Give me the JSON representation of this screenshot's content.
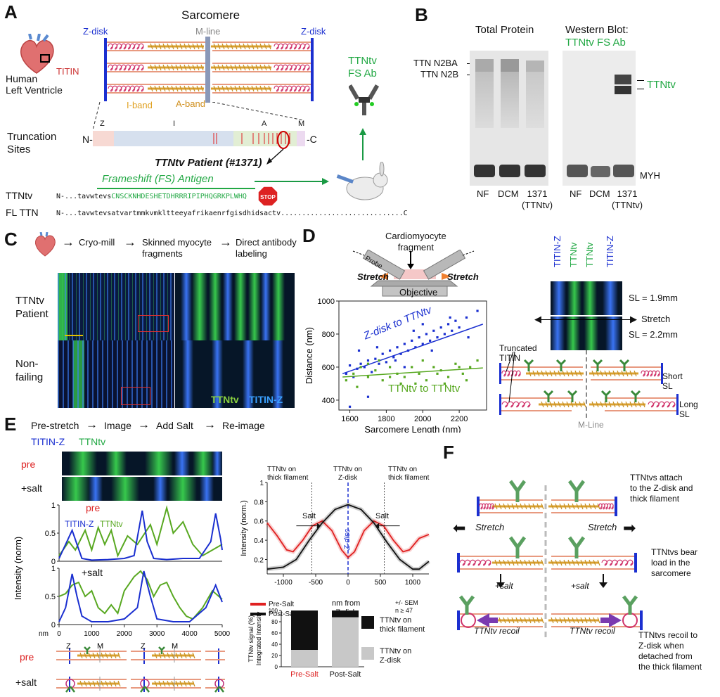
{
  "panels": {
    "A": "A",
    "B": "B",
    "C": "C",
    "D": "D",
    "E": "E",
    "F": "F"
  },
  "panel_a": {
    "title": "Sarcomere",
    "zdisk_left": "Z-disk",
    "zdisk_right": "Z-disk",
    "mline": "M-line",
    "titin": "TITIN",
    "iband": "I-band",
    "aband": "A-band",
    "organ_label": "Human\nLeft Ventricle",
    "truncation_label": "Truncation\nSites",
    "region_z": "Z",
    "region_i": "I",
    "region_a": "A",
    "region_m": "M",
    "n_term": "N-",
    "c_term": "-C",
    "patient": "TTNtv Patient (#1371)",
    "antigen": "Frameshift (FS) Antigen",
    "antibody": "TTNtv\nFS Ab",
    "stop": "STOP",
    "ttntv_label": "TTNtv",
    "fl_label": "FL TTN",
    "ttntv_seq_prefix": "N-...tavwtevs",
    "ttntv_seq_fs": "CNSCKNHDESHETDHRRRIPIPHQGRKPLWHQ",
    "fl_seq": "N-...tavwtevsatvartmmkvmkltteeyafrikaenrfgisdhidsactv.............................C"
  },
  "panel_b": {
    "total_protein": "Total Protein",
    "western_title": "Western Blot:",
    "western_ab": "TTNtv FS Ab",
    "n2ba": "TTN N2BA",
    "n2b": "TTN N2B",
    "ttntv": "TTNtv",
    "myh": "MYH",
    "lanes_left": [
      "NF",
      "DCM",
      "1371\n(TTNtv)"
    ],
    "lanes_right": [
      "NF",
      "DCM",
      "1371\n(TTNtv)"
    ]
  },
  "panel_c": {
    "steps": [
      "Cryo-mill",
      "Skinned myocyte\nfragments",
      "Direct antibody\nlabeling"
    ],
    "row1": "TTNtv\nPatient",
    "row2": "Non-\nfailing",
    "legend_ttntv": "TTNtv",
    "legend_titinz": "TITIN-Z"
  },
  "panel_d": {
    "fragment": "Cardiomyocyte\nfragment",
    "probe": "Probe",
    "stretch_left": "Stretch",
    "stretch_right": "Stretch",
    "objective": "Objective",
    "col_labels": [
      "TITIN-Z",
      "TTNtv",
      "TTNtv",
      "TITIN-Z"
    ],
    "sl1": "SL = 1.9mm",
    "stretch_mid": "Stretch",
    "sl2": "SL = 2.2mm",
    "truncated": "Truncated\nTITIN",
    "short_sl": "Short\nSL",
    "long_sl": "Long\nSL",
    "mline": "M-Line",
    "colors": {
      "blue": "#1a2fd0",
      "green": "#58a821"
    }
  },
  "chart_data": [
    {
      "type": "scatter",
      "xlabel": "Sarcomere Length (nm)",
      "ylabel": "Distance (nm)",
      "xlim": [
        1540,
        2350
      ],
      "ylim": [
        340,
        1000
      ],
      "xticks": [
        "1600",
        "1800",
        "2000",
        "2200"
      ],
      "yticks": [
        "400",
        "600",
        "800",
        "1000"
      ],
      "series": [
        {
          "name": "Z-disk to TTNtv",
          "color": "#1a2fd0",
          "points": [
            [
              1580,
              560
            ],
            [
              1600,
              610
            ],
            [
              1620,
              540
            ],
            [
              1640,
              590
            ],
            [
              1660,
              620
            ],
            [
              1680,
              600
            ],
            [
              1700,
              640
            ],
            [
              1720,
              570
            ],
            [
              1740,
              650
            ],
            [
              1760,
              620
            ],
            [
              1780,
              680
            ],
            [
              1800,
              630
            ],
            [
              1820,
              700
            ],
            [
              1840,
              660
            ],
            [
              1860,
              720
            ],
            [
              1880,
              680
            ],
            [
              1900,
              740
            ],
            [
              1920,
              700
            ],
            [
              1940,
              760
            ],
            [
              1960,
              720
            ],
            [
              1980,
              780
            ],
            [
              2000,
              740
            ],
            [
              2020,
              800
            ],
            [
              2040,
              760
            ],
            [
              2060,
              820
            ],
            [
              2080,
              780
            ],
            [
              2100,
              840
            ],
            [
              2120,
              800
            ],
            [
              2140,
              860
            ],
            [
              2160,
              820
            ],
            [
              2180,
              880
            ],
            [
              2200,
              840
            ],
            [
              2240,
              900
            ],
            [
              2300,
              940
            ],
            [
              1650,
              700
            ],
            [
              1750,
              720
            ],
            [
              1850,
              640
            ],
            [
              1950,
              820
            ],
            [
              2050,
              700
            ],
            [
              2150,
              900
            ],
            [
              1600,
              360
            ],
            [
              1700,
              420
            ],
            [
              2000,
              860
            ],
            [
              1900,
              600
            ],
            [
              2250,
              780
            ]
          ],
          "fit": [
            [
              1560,
              560
            ],
            [
              2330,
              860
            ]
          ]
        },
        {
          "name": "TTNtv to TTNtv",
          "color": "#58a821",
          "points": [
            [
              1580,
              520
            ],
            [
              1620,
              560
            ],
            [
              1660,
              600
            ],
            [
              1700,
              540
            ],
            [
              1740,
              580
            ],
            [
              1780,
              520
            ],
            [
              1820,
              600
            ],
            [
              1860,
              560
            ],
            [
              1900,
              540
            ],
            [
              1940,
              600
            ],
            [
              1980,
              560
            ],
            [
              2020,
              520
            ],
            [
              2060,
              600
            ],
            [
              2100,
              580
            ],
            [
              2140,
              540
            ],
            [
              2180,
              620
            ],
            [
              2220,
              560
            ],
            [
              2260,
              600
            ],
            [
              2300,
              640
            ],
            [
              1640,
              480
            ],
            [
              1760,
              640
            ],
            [
              1880,
              500
            ],
            [
              2000,
              640
            ],
            [
              2120,
              500
            ],
            [
              2240,
              520
            ],
            [
              1700,
              620
            ],
            [
              1820,
              540
            ],
            [
              1960,
              500
            ],
            [
              2080,
              560
            ],
            [
              2200,
              600
            ]
          ],
          "fit": [
            [
              1560,
              540
            ],
            [
              2330,
              595
            ]
          ]
        }
      ]
    },
    {
      "type": "line",
      "xlabel": "nm",
      "ylabel": "Intensity (norm)",
      "title_pre": "pre",
      "title_salt": "+salt",
      "xlim": [
        0,
        5000
      ],
      "ylim": [
        0,
        1
      ],
      "xticks": [
        "0",
        "1000",
        "2000",
        "3000",
        "4000",
        "5000"
      ],
      "yticks": [
        "0",
        "0.5",
        "1"
      ],
      "pre": {
        "titin_z": [
          [
            0,
            0.05
          ],
          [
            200,
            0.3
          ],
          [
            400,
            0.55
          ],
          [
            550,
            0.3
          ],
          [
            700,
            0.05
          ],
          [
            1000,
            0.02
          ],
          [
            1500,
            0.03
          ],
          [
            2000,
            0.05
          ],
          [
            2300,
            0.1
          ],
          [
            2550,
            0.9
          ],
          [
            2700,
            0.35
          ],
          [
            2900,
            0.05
          ],
          [
            3300,
            0.03
          ],
          [
            3800,
            0.05
          ],
          [
            4300,
            0.05
          ],
          [
            4650,
            0.35
          ],
          [
            4800,
            0.85
          ],
          [
            4950,
            0.4
          ],
          [
            5000,
            0.2
          ]
        ],
        "ttntv": [
          [
            0,
            0.1
          ],
          [
            300,
            0.35
          ],
          [
            500,
            0.2
          ],
          [
            800,
            0.55
          ],
          [
            1000,
            0.2
          ],
          [
            1200,
            0.6
          ],
          [
            1400,
            0.3
          ],
          [
            1600,
            0.55
          ],
          [
            1800,
            0.1
          ],
          [
            2100,
            0.45
          ],
          [
            2400,
            0.3
          ],
          [
            2800,
            0.65
          ],
          [
            3000,
            0.3
          ],
          [
            3300,
            0.95
          ],
          [
            3500,
            0.5
          ],
          [
            3800,
            0.7
          ],
          [
            4100,
            0.3
          ],
          [
            4400,
            0.1
          ],
          [
            4700,
            0.2
          ],
          [
            5000,
            0.3
          ]
        ]
      },
      "salt": {
        "titin_z": [
          [
            0,
            0.05
          ],
          [
            200,
            0.3
          ],
          [
            400,
            0.9
          ],
          [
            550,
            0.5
          ],
          [
            700,
            0.15
          ],
          [
            1000,
            0.05
          ],
          [
            1500,
            0.05
          ],
          [
            2000,
            0.1
          ],
          [
            2400,
            0.3
          ],
          [
            2600,
            0.95
          ],
          [
            2800,
            0.5
          ],
          [
            3000,
            0.1
          ],
          [
            3500,
            0.05
          ],
          [
            4000,
            0.05
          ],
          [
            4500,
            0.3
          ],
          [
            4800,
            0.7
          ],
          [
            5000,
            0.4
          ]
        ],
        "ttntv": [
          [
            0,
            0.5
          ],
          [
            200,
            0.55
          ],
          [
            400,
            0.7
          ],
          [
            600,
            0.75
          ],
          [
            800,
            0.5
          ],
          [
            1000,
            0.6
          ],
          [
            1200,
            0.3
          ],
          [
            1400,
            0.2
          ],
          [
            1600,
            0.35
          ],
          [
            1800,
            0.2
          ],
          [
            2000,
            0.6
          ],
          [
            2300,
            0.85
          ],
          [
            2500,
            0.95
          ],
          [
            2700,
            0.8
          ],
          [
            2900,
            0.5
          ],
          [
            3100,
            0.7
          ],
          [
            3300,
            0.75
          ],
          [
            3500,
            0.5
          ],
          [
            3700,
            0.3
          ],
          [
            3900,
            0.15
          ],
          [
            4100,
            0.1
          ],
          [
            4400,
            0.3
          ],
          [
            4700,
            0.6
          ],
          [
            5000,
            0.45
          ]
        ]
      }
    },
    {
      "type": "line",
      "xlabel": "nm from\nZ-disk",
      "ylabel": "Intensity (norm.)",
      "xlim": [
        -1250,
        1250
      ],
      "ylim": [
        0.05,
        1
      ],
      "xticks": [
        "-1000",
        "-500",
        "0",
        "500",
        "1000"
      ],
      "yticks": [
        "0.2",
        "0.4",
        "0.6",
        "0.8",
        "1"
      ],
      "series": [
        {
          "name": "Pre-Salt",
          "color": "#e02020",
          "points": [
            [
              -1250,
              0.58
            ],
            [
              -1100,
              0.45
            ],
            [
              -950,
              0.3
            ],
            [
              -850,
              0.28
            ],
            [
              -700,
              0.4
            ],
            [
              -550,
              0.55
            ],
            [
              -400,
              0.6
            ],
            [
              -250,
              0.5
            ],
            [
              -100,
              0.3
            ],
            [
              0,
              0.22
            ],
            [
              100,
              0.28
            ],
            [
              250,
              0.5
            ],
            [
              400,
              0.6
            ],
            [
              550,
              0.55
            ],
            [
              700,
              0.4
            ],
            [
              850,
              0.28
            ],
            [
              950,
              0.3
            ],
            [
              1100,
              0.42
            ],
            [
              1250,
              0.46
            ]
          ]
        },
        {
          "name": "Post-Salt",
          "color": "#111111",
          "points": [
            [
              -1250,
              0.1
            ],
            [
              -1000,
              0.12
            ],
            [
              -800,
              0.2
            ],
            [
              -600,
              0.4
            ],
            [
              -400,
              0.58
            ],
            [
              -200,
              0.72
            ],
            [
              0,
              0.77
            ],
            [
              200,
              0.72
            ],
            [
              400,
              0.58
            ],
            [
              600,
              0.38
            ],
            [
              800,
              0.2
            ],
            [
              1000,
              0.1
            ],
            [
              1100,
              0.1
            ],
            [
              1250,
              0.18
            ]
          ]
        }
      ],
      "annot_left": "TTNtv on\nthick filament",
      "annot_mid": "TTNtv on\nZ-disk",
      "annot_right": "TTNtv on\nthick filament",
      "salt_label": "Salt",
      "zdisc": "Z-disc",
      "sem": "+/- SEM\nn ≥ 47"
    },
    {
      "type": "bar",
      "categories": [
        "Pre-Salt",
        "Post-Salt"
      ],
      "ylabel": "TTNtv signal (%)\nIntegrated Intensity",
      "series": [
        {
          "name": "TTNtv on\nZ-disk",
          "color": "#c8c8c8",
          "values": [
            30,
            88
          ]
        },
        {
          "name": "TTNtv on\nthick filament",
          "color": "#111111",
          "values": [
            70,
            12
          ]
        }
      ],
      "ylim": [
        0,
        100
      ]
    }
  ],
  "panel_e": {
    "steps": [
      "Pre-stretch",
      "Image",
      "Add Salt",
      "Re-image"
    ],
    "titin_z": "TITIN-Z",
    "ttntv": "TTNtv",
    "pre": "pre",
    "salt": "+salt",
    "leg_titinz": "TITIN-Z",
    "leg_ttntv": "TTNtv",
    "sch_pre": "pre",
    "sch_salt": "+salt",
    "z1": "Z",
    "m1": "M",
    "z2": "Z",
    "m2": "M"
  },
  "panel_f": {
    "note1": "TTNtvs attach\nto the Z-disk and\nthick filament",
    "stretch_left": "Stretch",
    "stretch_right": "Stretch",
    "note2": "TTNtvs bear\nload in the\nsarcomere",
    "salt_left": "+salt",
    "salt_right": "+salt",
    "recoil_left": "TTNtv recoil",
    "recoil_right": "TTNtv recoil",
    "note3": "TTNtvs recoil to\nZ-disk when\ndetached from\nthe thick filament"
  }
}
